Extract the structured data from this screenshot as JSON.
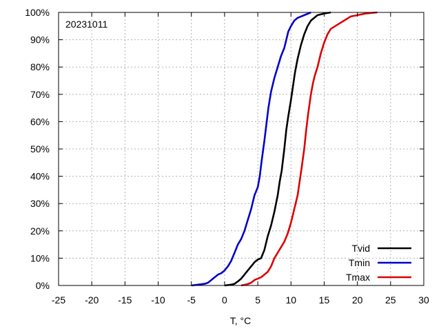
{
  "chart_data": {
    "type": "line",
    "annotation": "20231011",
    "xlabel": "T, °C",
    "ylabel": "",
    "xlim": [
      -25,
      30
    ],
    "ylim": [
      0,
      100
    ],
    "x_ticks": [
      -25,
      -20,
      -15,
      -10,
      -5,
      0,
      5,
      10,
      15,
      20,
      25,
      30
    ],
    "y_ticks": [
      0,
      10,
      20,
      30,
      40,
      50,
      60,
      70,
      80,
      90,
      100
    ],
    "y_tick_suffix": "%",
    "grid": true,
    "legend_position": "bottom-right",
    "series": [
      {
        "name": "Tvid",
        "color": "#000000",
        "points": [
          [
            0,
            0
          ],
          [
            1,
            0.3
          ],
          [
            1.5,
            0.6
          ],
          [
            2,
            1.5
          ],
          [
            2.5,
            2.5
          ],
          [
            3,
            4
          ],
          [
            3.5,
            5.5
          ],
          [
            4,
            7
          ],
          [
            4.5,
            8.5
          ],
          [
            5,
            9.5
          ],
          [
            5.5,
            10
          ],
          [
            6,
            13
          ],
          [
            6.5,
            18
          ],
          [
            7,
            22
          ],
          [
            7.5,
            27
          ],
          [
            8,
            33
          ],
          [
            8.3,
            38
          ],
          [
            8.6,
            42
          ],
          [
            9,
            50
          ],
          [
            9.3,
            57
          ],
          [
            9.6,
            62
          ],
          [
            10,
            68
          ],
          [
            10.3,
            73
          ],
          [
            10.6,
            78
          ],
          [
            11,
            83
          ],
          [
            11.5,
            88
          ],
          [
            12,
            92
          ],
          [
            12.5,
            95
          ],
          [
            13,
            97
          ],
          [
            13.5,
            98
          ],
          [
            14,
            99
          ],
          [
            15,
            99.6
          ],
          [
            16,
            100
          ]
        ]
      },
      {
        "name": "Tmin",
        "color": "#0000cc",
        "points": [
          [
            -5,
            0
          ],
          [
            -4,
            0.3
          ],
          [
            -3,
            0.6
          ],
          [
            -2.5,
            1
          ],
          [
            -2,
            2
          ],
          [
            -1.5,
            3
          ],
          [
            -1,
            4
          ],
          [
            -0.5,
            4.5
          ],
          [
            0,
            5.5
          ],
          [
            0.5,
            7
          ],
          [
            1,
            9
          ],
          [
            1.5,
            12
          ],
          [
            2,
            15
          ],
          [
            2.5,
            17
          ],
          [
            3,
            20
          ],
          [
            3.5,
            24
          ],
          [
            4,
            28
          ],
          [
            4.5,
            33
          ],
          [
            5,
            36
          ],
          [
            5.3,
            40
          ],
          [
            5.6,
            46
          ],
          [
            6,
            53
          ],
          [
            6.3,
            59
          ],
          [
            6.6,
            65
          ],
          [
            7,
            71
          ],
          [
            7.5,
            76
          ],
          [
            8,
            80
          ],
          [
            8.5,
            84
          ],
          [
            9,
            87
          ],
          [
            9.3,
            90
          ],
          [
            9.6,
            93
          ],
          [
            10,
            95
          ],
          [
            10.5,
            97
          ],
          [
            11,
            98
          ],
          [
            12,
            99
          ],
          [
            12.5,
            99.5
          ],
          [
            13,
            100
          ]
        ]
      },
      {
        "name": "Tmax",
        "color": "#dd0000",
        "points": [
          [
            2.5,
            0
          ],
          [
            3.5,
            0.5
          ],
          [
            4,
            1
          ],
          [
            4.5,
            2
          ],
          [
            5,
            2.5
          ],
          [
            5.5,
            3
          ],
          [
            6,
            4
          ],
          [
            6.5,
            5
          ],
          [
            7,
            7
          ],
          [
            7.5,
            10
          ],
          [
            8,
            12
          ],
          [
            8.5,
            14
          ],
          [
            9,
            16
          ],
          [
            9.5,
            19
          ],
          [
            10,
            23
          ],
          [
            10.5,
            28
          ],
          [
            11,
            33
          ],
          [
            11.3,
            38
          ],
          [
            11.6,
            43
          ],
          [
            12,
            50
          ],
          [
            12.3,
            57
          ],
          [
            12.6,
            63
          ],
          [
            13,
            70
          ],
          [
            13.3,
            74
          ],
          [
            13.6,
            77
          ],
          [
            14,
            80
          ],
          [
            14.5,
            85
          ],
          [
            15,
            89
          ],
          [
            15.5,
            92
          ],
          [
            16,
            94
          ],
          [
            17,
            95.5
          ],
          [
            18,
            97
          ],
          [
            19,
            98.5
          ],
          [
            20,
            99
          ],
          [
            21,
            99.5
          ],
          [
            22,
            99.8
          ],
          [
            23,
            100
          ]
        ]
      }
    ]
  }
}
